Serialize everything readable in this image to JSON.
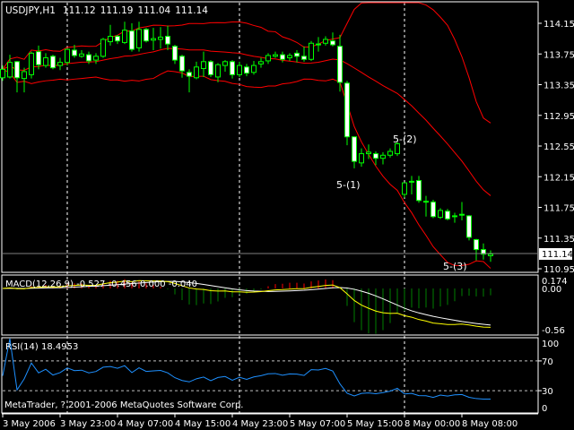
{
  "header": {
    "symbol": "USDJPY,H1",
    "open": "111.12",
    "high": "111.19",
    "low": "111.04",
    "close": "111.14"
  },
  "copyright": "MetaTrader, ? 2001-2006 MetaQuotes Software Corp.",
  "colors": {
    "background": "#000000",
    "bull": "#00ff00",
    "bear_body": "#ffffff",
    "bands": "#ff0000",
    "macd_main": "#ffff00",
    "macd_signal": "#ffffff",
    "macd_hist_pos": "#ff0000",
    "macd_hist_neg": "#008000",
    "rsi": "#1e90ff"
  },
  "chart_data": [
    {
      "type": "candlestick",
      "title": "USDJPY,H1",
      "overlay": "Bollinger Bands (red)",
      "price_ticks": [
        "114.15",
        "113.75",
        "113.35",
        "112.95",
        "112.55",
        "112.15",
        "111.75",
        "111.35",
        "110.95"
      ],
      "ylim": [
        110.95,
        114.15
      ],
      "current_price": "111.14",
      "time_labels": [
        "3 May 2006",
        "3 May 23:00",
        "4 May 07:00",
        "4 May 15:00",
        "4 May 23:00",
        "5 May 07:00",
        "5 May 15:00",
        "8 May 00:00",
        "8 May 08:00"
      ],
      "annotations": [
        "5-(1)",
        "5-(2)",
        "5-(3)"
      ],
      "ohlc_fields": [
        "open",
        "high",
        "low",
        "close"
      ],
      "ohlc": [
        [
          113.44,
          113.6,
          113.4,
          113.55
        ],
        [
          113.45,
          113.74,
          113.43,
          113.64
        ],
        [
          113.65,
          113.66,
          113.25,
          113.44
        ],
        [
          113.43,
          113.57,
          113.25,
          113.52
        ],
        [
          113.48,
          113.78,
          113.43,
          113.76
        ],
        [
          113.78,
          113.86,
          113.55,
          113.61
        ],
        [
          113.6,
          113.76,
          113.57,
          113.7
        ],
        [
          113.72,
          113.74,
          113.55,
          113.57
        ],
        [
          113.6,
          113.7,
          113.54,
          113.64
        ],
        [
          113.64,
          113.82,
          113.6,
          113.81
        ],
        [
          113.8,
          113.87,
          113.7,
          113.73
        ],
        [
          113.72,
          113.8,
          113.7,
          113.75
        ],
        [
          113.74,
          113.78,
          113.62,
          113.66
        ],
        [
          113.67,
          113.76,
          113.62,
          113.72
        ],
        [
          113.72,
          113.96,
          113.7,
          113.94
        ],
        [
          113.91,
          114.13,
          113.86,
          113.98
        ],
        [
          113.98,
          114.0,
          113.88,
          113.92
        ],
        [
          113.9,
          114.17,
          113.88,
          114.06
        ],
        [
          114.05,
          114.15,
          113.78,
          113.81
        ],
        [
          113.83,
          114.17,
          113.78,
          114.07
        ],
        [
          114.07,
          114.09,
          113.9,
          113.92
        ],
        [
          113.93,
          114.09,
          113.8,
          113.95
        ],
        [
          113.94,
          114.1,
          113.82,
          113.97
        ],
        [
          113.98,
          114.12,
          113.8,
          113.88
        ],
        [
          113.85,
          113.87,
          113.62,
          113.67
        ],
        [
          113.72,
          113.74,
          113.44,
          113.53
        ],
        [
          113.51,
          113.55,
          113.25,
          113.46
        ],
        [
          113.44,
          113.65,
          113.42,
          113.58
        ],
        [
          113.56,
          113.78,
          113.45,
          113.65
        ],
        [
          113.65,
          113.67,
          113.45,
          113.48
        ],
        [
          113.45,
          113.63,
          113.38,
          113.61
        ],
        [
          113.6,
          113.67,
          113.52,
          113.65
        ],
        [
          113.65,
          113.67,
          113.43,
          113.48
        ],
        [
          113.48,
          113.65,
          113.45,
          113.6
        ],
        [
          113.58,
          113.62,
          113.46,
          113.5
        ],
        [
          113.51,
          113.66,
          113.48,
          113.6
        ],
        [
          113.62,
          113.7,
          113.57,
          113.65
        ],
        [
          113.66,
          113.76,
          113.62,
          113.73
        ],
        [
          113.72,
          113.78,
          113.7,
          113.74
        ],
        [
          113.74,
          113.78,
          113.64,
          113.68
        ],
        [
          113.7,
          113.76,
          113.66,
          113.73
        ],
        [
          113.76,
          113.8,
          113.64,
          113.72
        ],
        [
          113.72,
          113.85,
          113.65,
          113.68
        ],
        [
          113.68,
          113.92,
          113.66,
          113.89
        ],
        [
          113.87,
          113.97,
          113.78,
          113.88
        ],
        [
          113.89,
          113.98,
          113.86,
          113.94
        ],
        [
          113.92,
          114.03,
          113.85,
          113.87
        ],
        [
          113.85,
          114.0,
          113.26,
          113.38
        ],
        [
          113.37,
          113.4,
          112.56,
          112.67
        ],
        [
          112.67,
          112.67,
          112.26,
          112.35
        ],
        [
          112.33,
          112.52,
          112.28,
          112.45
        ],
        [
          112.45,
          112.57,
          112.38,
          112.47
        ],
        [
          112.45,
          112.48,
          112.3,
          112.39
        ],
        [
          112.39,
          112.47,
          112.31,
          112.43
        ],
        [
          112.43,
          112.52,
          112.4,
          112.48
        ],
        [
          112.45,
          112.6,
          112.42,
          112.58
        ],
        [
          111.92,
          112.07,
          111.88,
          112.07
        ],
        [
          112.08,
          112.16,
          111.92,
          112.09
        ],
        [
          112.1,
          112.16,
          111.81,
          111.84
        ],
        [
          111.83,
          111.9,
          111.63,
          111.83
        ],
        [
          111.82,
          111.85,
          111.61,
          111.63
        ],
        [
          111.62,
          111.74,
          111.6,
          111.71
        ],
        [
          111.7,
          111.73,
          111.58,
          111.6
        ],
        [
          111.64,
          111.68,
          111.55,
          111.64
        ],
        [
          111.66,
          111.82,
          111.58,
          111.65
        ],
        [
          111.64,
          111.65,
          111.32,
          111.36
        ],
        [
          111.33,
          111.34,
          111.06,
          111.2
        ],
        [
          111.2,
          111.28,
          111.07,
          111.14
        ],
        [
          111.12,
          111.19,
          111.04,
          111.14
        ]
      ]
    },
    {
      "type": "line",
      "title": "MACD(12,26,9) -0.527 -0.456 0.000 -0.040",
      "ticks": [
        "0.174",
        "0.00",
        "-0.56"
      ],
      "ylim": [
        -0.56,
        0.174
      ]
    },
    {
      "type": "line",
      "title": "RSI(14) 18.4953",
      "ticks": [
        "100",
        "70",
        "30",
        "0"
      ],
      "levels": [
        70,
        30
      ],
      "ylim": [
        0,
        100
      ]
    }
  ]
}
